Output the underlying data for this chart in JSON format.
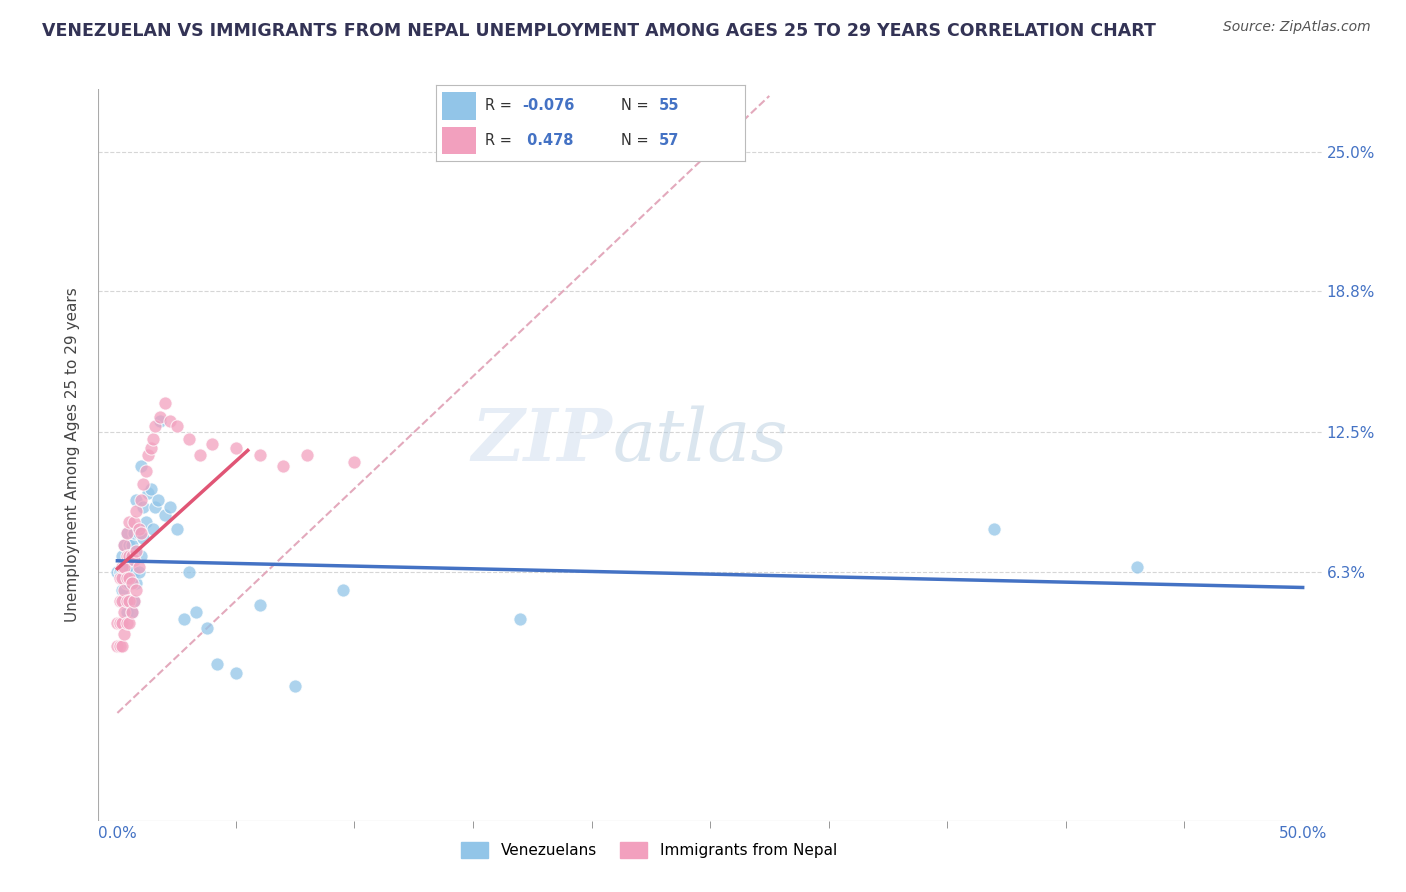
{
  "title": "VENEZUELAN VS IMMIGRANTS FROM NEPAL UNEMPLOYMENT AMONG AGES 25 TO 29 YEARS CORRELATION CHART",
  "source": "Source: ZipAtlas.com",
  "ylabel": "Unemployment Among Ages 25 to 29 years",
  "xlim": [
    -0.008,
    0.508
  ],
  "ylim": [
    -0.048,
    0.278
  ],
  "venezuelan_color": "#92C5E8",
  "nepal_color": "#F2A0BE",
  "trend_venezuelan_color": "#4472C4",
  "trend_nepal_color": "#E05575",
  "diagonal_color": "#D0A0B0",
  "watermark_zip": "ZIP",
  "watermark_atlas": "atlas",
  "legend_items": [
    {
      "color": "#92C5E8",
      "r_label": "R = ",
      "r_val": "-0.076",
      "n_label": "N = ",
      "n_val": "55"
    },
    {
      "color": "#F2A0BE",
      "r_label": "R = ",
      "r_val": " 0.478",
      "n_label": "N = ",
      "n_val": "57"
    }
  ],
  "ytick_vals": [
    0.063,
    0.125,
    0.188,
    0.25
  ],
  "ytick_labels": [
    "6.3%",
    "12.5%",
    "18.8%",
    "25.0%"
  ],
  "xtick_minor": [
    0.05,
    0.1,
    0.15,
    0.2,
    0.25,
    0.3,
    0.35,
    0.4,
    0.45
  ],
  "venezuelan_x": [
    0.0,
    0.001,
    0.001,
    0.002,
    0.002,
    0.002,
    0.003,
    0.003,
    0.003,
    0.003,
    0.004,
    0.004,
    0.004,
    0.004,
    0.005,
    0.005,
    0.005,
    0.005,
    0.005,
    0.006,
    0.006,
    0.006,
    0.007,
    0.007,
    0.007,
    0.008,
    0.008,
    0.009,
    0.009,
    0.01,
    0.01,
    0.011,
    0.011,
    0.012,
    0.013,
    0.014,
    0.015,
    0.016,
    0.017,
    0.018,
    0.02,
    0.022,
    0.025,
    0.028,
    0.03,
    0.033,
    0.038,
    0.042,
    0.05,
    0.06,
    0.075,
    0.095,
    0.17,
    0.37,
    0.43
  ],
  "venezuelan_y": [
    0.063,
    0.063,
    0.063,
    0.063,
    0.055,
    0.07,
    0.05,
    0.06,
    0.065,
    0.075,
    0.045,
    0.058,
    0.065,
    0.08,
    0.05,
    0.058,
    0.065,
    0.07,
    0.075,
    0.045,
    0.06,
    0.075,
    0.05,
    0.063,
    0.08,
    0.058,
    0.095,
    0.063,
    0.08,
    0.07,
    0.11,
    0.078,
    0.092,
    0.085,
    0.098,
    0.1,
    0.082,
    0.092,
    0.095,
    0.13,
    0.088,
    0.092,
    0.082,
    0.042,
    0.063,
    0.045,
    0.038,
    0.022,
    0.018,
    0.048,
    0.012,
    0.055,
    0.042,
    0.082,
    0.065
  ],
  "nepal_x": [
    0.0,
    0.0,
    0.001,
    0.001,
    0.001,
    0.001,
    0.002,
    0.002,
    0.002,
    0.002,
    0.002,
    0.003,
    0.003,
    0.003,
    0.003,
    0.003,
    0.004,
    0.004,
    0.004,
    0.004,
    0.004,
    0.005,
    0.005,
    0.005,
    0.005,
    0.005,
    0.006,
    0.006,
    0.006,
    0.007,
    0.007,
    0.007,
    0.008,
    0.008,
    0.008,
    0.009,
    0.009,
    0.01,
    0.01,
    0.011,
    0.012,
    0.013,
    0.014,
    0.015,
    0.016,
    0.018,
    0.02,
    0.022,
    0.025,
    0.03,
    0.035,
    0.04,
    0.05,
    0.06,
    0.07,
    0.08,
    0.1
  ],
  "nepal_y": [
    0.03,
    0.04,
    0.03,
    0.04,
    0.05,
    0.06,
    0.03,
    0.04,
    0.05,
    0.06,
    0.065,
    0.035,
    0.045,
    0.055,
    0.065,
    0.075,
    0.04,
    0.05,
    0.06,
    0.07,
    0.08,
    0.04,
    0.05,
    0.06,
    0.07,
    0.085,
    0.045,
    0.058,
    0.07,
    0.05,
    0.068,
    0.085,
    0.055,
    0.072,
    0.09,
    0.065,
    0.082,
    0.08,
    0.095,
    0.102,
    0.108,
    0.115,
    0.118,
    0.122,
    0.128,
    0.132,
    0.138,
    0.13,
    0.128,
    0.122,
    0.115,
    0.12,
    0.118,
    0.115,
    0.11,
    0.115,
    0.112
  ],
  "background_color": "#FFFFFF"
}
